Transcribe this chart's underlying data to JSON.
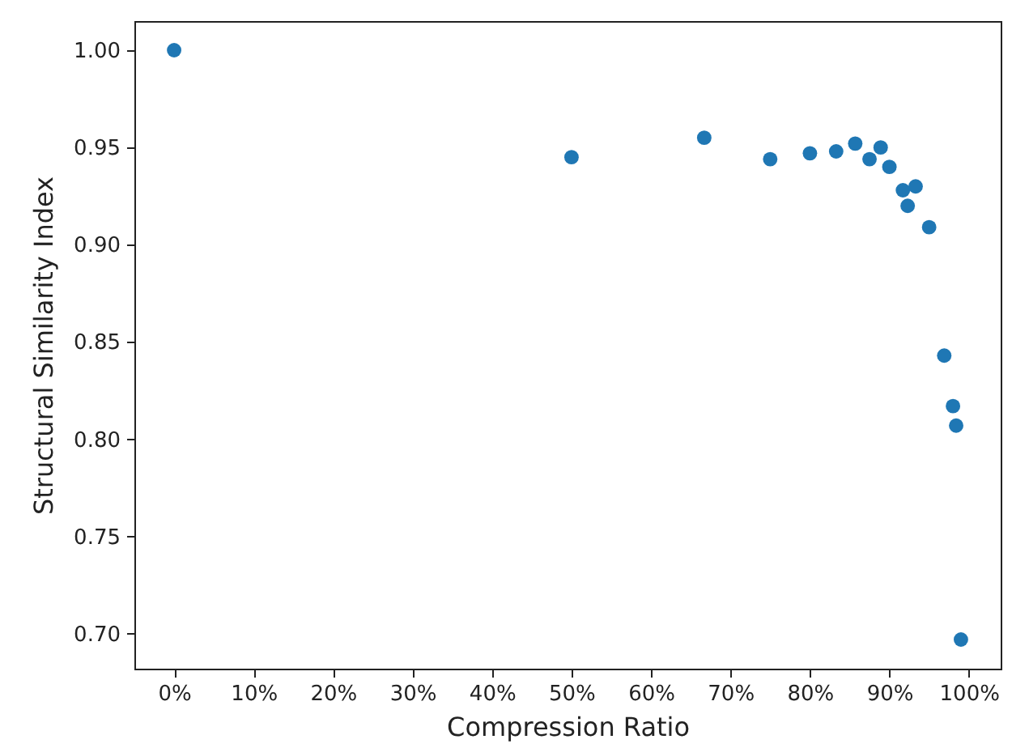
{
  "chart_data": {
    "type": "scatter",
    "xlabel": "Compression Ratio",
    "ylabel": "Structural Similarity Index",
    "x": [
      0,
      50,
      66.7,
      75,
      80,
      83.3,
      85.7,
      87.5,
      88.9,
      90,
      91.7,
      92.3,
      93.3,
      95,
      96.9,
      98.0,
      98.4,
      99.0
    ],
    "series": [
      {
        "color": "#1f77b4",
        "values": [
          1.0,
          0.945,
          0.955,
          0.944,
          0.947,
          0.948,
          0.952,
          0.944,
          0.95,
          0.94,
          0.928,
          0.92,
          0.93,
          0.909,
          0.843,
          0.817,
          0.807,
          0.697
        ]
      }
    ],
    "xlim": [
      -5,
      104
    ],
    "ylim": [
      0.682,
      1.015
    ],
    "xticks": [
      {
        "value": 0,
        "label": "0%"
      },
      {
        "value": 10,
        "label": "10%"
      },
      {
        "value": 20,
        "label": "20%"
      },
      {
        "value": 30,
        "label": "30%"
      },
      {
        "value": 40,
        "label": "40%"
      },
      {
        "value": 50,
        "label": "50%"
      },
      {
        "value": 60,
        "label": "60%"
      },
      {
        "value": 70,
        "label": "70%"
      },
      {
        "value": 80,
        "label": "80%"
      },
      {
        "value": 90,
        "label": "90%"
      },
      {
        "value": 100,
        "label": "100%"
      }
    ],
    "yticks": [
      {
        "value": 0.7,
        "label": "0.70"
      },
      {
        "value": 0.75,
        "label": "0.75"
      },
      {
        "value": 0.8,
        "label": "0.80"
      },
      {
        "value": 0.85,
        "label": "0.85"
      },
      {
        "value": 0.9,
        "label": "0.90"
      },
      {
        "value": 0.95,
        "label": "0.95"
      },
      {
        "value": 1.0,
        "label": "1.00"
      }
    ],
    "grid": false,
    "marker": "circle"
  }
}
